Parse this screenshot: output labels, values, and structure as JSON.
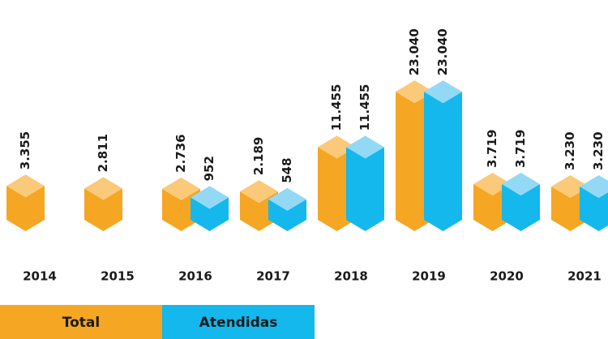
{
  "chart_data": {
    "type": "bar",
    "categories": [
      "2014",
      "2015",
      "2016",
      "2017",
      "2018",
      "2019",
      "2020",
      "2021"
    ],
    "series": [
      {
        "name": "Total",
        "color": "#f5a623",
        "top_color": "#fbc97a",
        "values": [
          3355,
          2811,
          2736,
          2189,
          11455,
          23040,
          3719,
          3230
        ],
        "value_labels": [
          "3.355",
          "2.811",
          "2.736",
          "2.189",
          "11.455",
          "23.040",
          "3.719",
          "3.230"
        ]
      },
      {
        "name": "Atendidas",
        "color": "#14b8ec",
        "top_color": "#93d9f6",
        "values": [
          null,
          null,
          952,
          548,
          11455,
          23040,
          3719,
          3230
        ],
        "value_labels": [
          null,
          null,
          "952",
          "548",
          "11.455",
          "23.040",
          "3.719",
          "3.230"
        ]
      }
    ]
  }
}
